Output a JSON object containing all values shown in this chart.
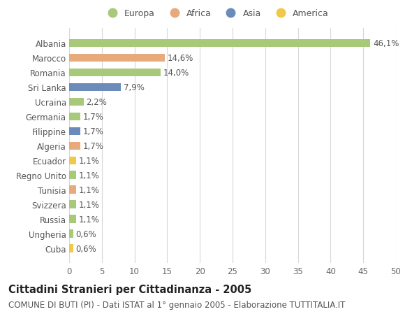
{
  "countries": [
    "Albania",
    "Marocco",
    "Romania",
    "Sri Lanka",
    "Ucraina",
    "Germania",
    "Filippine",
    "Algeria",
    "Ecuador",
    "Regno Unito",
    "Tunisia",
    "Svizzera",
    "Russia",
    "Ungheria",
    "Cuba"
  ],
  "values": [
    46.1,
    14.6,
    14.0,
    7.9,
    2.2,
    1.7,
    1.7,
    1.7,
    1.1,
    1.1,
    1.1,
    1.1,
    1.1,
    0.6,
    0.6
  ],
  "labels": [
    "46,1%",
    "14,6%",
    "14,0%",
    "7,9%",
    "2,2%",
    "1,7%",
    "1,7%",
    "1,7%",
    "1,1%",
    "1,1%",
    "1,1%",
    "1,1%",
    "1,1%",
    "0,6%",
    "0,6%"
  ],
  "continents": [
    "Europa",
    "Africa",
    "Europa",
    "Asia",
    "Europa",
    "Europa",
    "Asia",
    "Africa",
    "America",
    "Europa",
    "Africa",
    "Europa",
    "Europa",
    "Europa",
    "America"
  ],
  "continent_colors": {
    "Europa": "#a8c87a",
    "Africa": "#e8aa7a",
    "Asia": "#6b8cba",
    "America": "#f0c84a"
  },
  "legend_order": [
    "Europa",
    "Africa",
    "Asia",
    "America"
  ],
  "title": "Cittadini Stranieri per Cittadinanza - 2005",
  "subtitle": "COMUNE DI BUTI (PI) - Dati ISTAT al 1° gennaio 2005 - Elaborazione TUTTITALIA.IT",
  "xlim": [
    0,
    50
  ],
  "xticks": [
    0,
    5,
    10,
    15,
    20,
    25,
    30,
    35,
    40,
    45,
    50
  ],
  "background_color": "#ffffff",
  "grid_color": "#d8d8d8",
  "bar_height": 0.55,
  "title_fontsize": 10.5,
  "subtitle_fontsize": 8.5,
  "tick_fontsize": 8.5,
  "label_fontsize": 8.5
}
